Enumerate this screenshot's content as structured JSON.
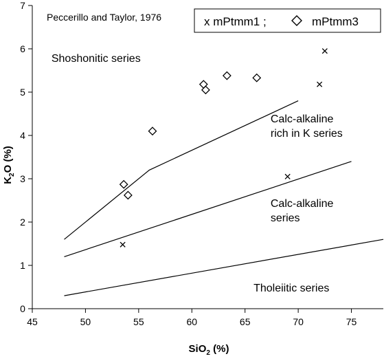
{
  "chart_data": {
    "type": "scatter",
    "source_label": "Peccerillo and Taylor, 1976",
    "xlabel": {
      "main": "SiO",
      "sub": "2",
      "unit": " (%)"
    },
    "ylabel": {
      "main": "K",
      "sub": "2",
      "unit": "O (%)"
    },
    "xlim": [
      45,
      78
    ],
    "ylim": [
      0,
      7
    ],
    "xticks": [
      45,
      50,
      55,
      60,
      65,
      70,
      75
    ],
    "yticks": [
      0,
      1,
      2,
      3,
      4,
      5,
      6,
      7
    ],
    "grid": false,
    "legend": {
      "placement": "top-right",
      "text": "x mPtmm1  ;",
      "series2_text": "mPtmm3"
    },
    "boundaries": [
      {
        "name": "shoshonitic-boundary",
        "points": [
          [
            48,
            1.6
          ],
          [
            56,
            3.2
          ],
          [
            70,
            4.8
          ]
        ]
      },
      {
        "name": "high-k-boundary",
        "points": [
          [
            48,
            1.2
          ],
          [
            75,
            3.4
          ]
        ]
      },
      {
        "name": "calc-alkaline-boundary",
        "points": [
          [
            48,
            0.3
          ],
          [
            78,
            1.6
          ]
        ]
      }
    ],
    "regions": [
      {
        "label_lines": [
          "Shoshonitic series"
        ],
        "anchor": [
          46.8,
          5.7
        ]
      },
      {
        "label_lines": [
          "Calc-alkaline",
          "rich in K series"
        ],
        "anchor": [
          67.4,
          4.3
        ]
      },
      {
        "label_lines": [
          "Calc-alkaline",
          "series"
        ],
        "anchor": [
          67.4,
          2.35
        ]
      },
      {
        "label_lines": [
          "Tholeiitic series"
        ],
        "anchor": [
          65.8,
          0.4
        ]
      }
    ],
    "series": [
      {
        "name": "mPtmm1",
        "marker": "x",
        "points": [
          [
            53.5,
            1.48
          ],
          [
            69.0,
            3.05
          ],
          [
            72.0,
            5.18
          ],
          [
            72.5,
            5.95
          ]
        ]
      },
      {
        "name": "mPtmm3",
        "marker": "diamond",
        "points": [
          [
            53.6,
            2.87
          ],
          [
            54.0,
            2.62
          ],
          [
            56.3,
            4.1
          ],
          [
            61.1,
            5.18
          ],
          [
            61.3,
            5.05
          ],
          [
            63.3,
            5.38
          ],
          [
            66.1,
            5.33
          ]
        ]
      }
    ]
  }
}
